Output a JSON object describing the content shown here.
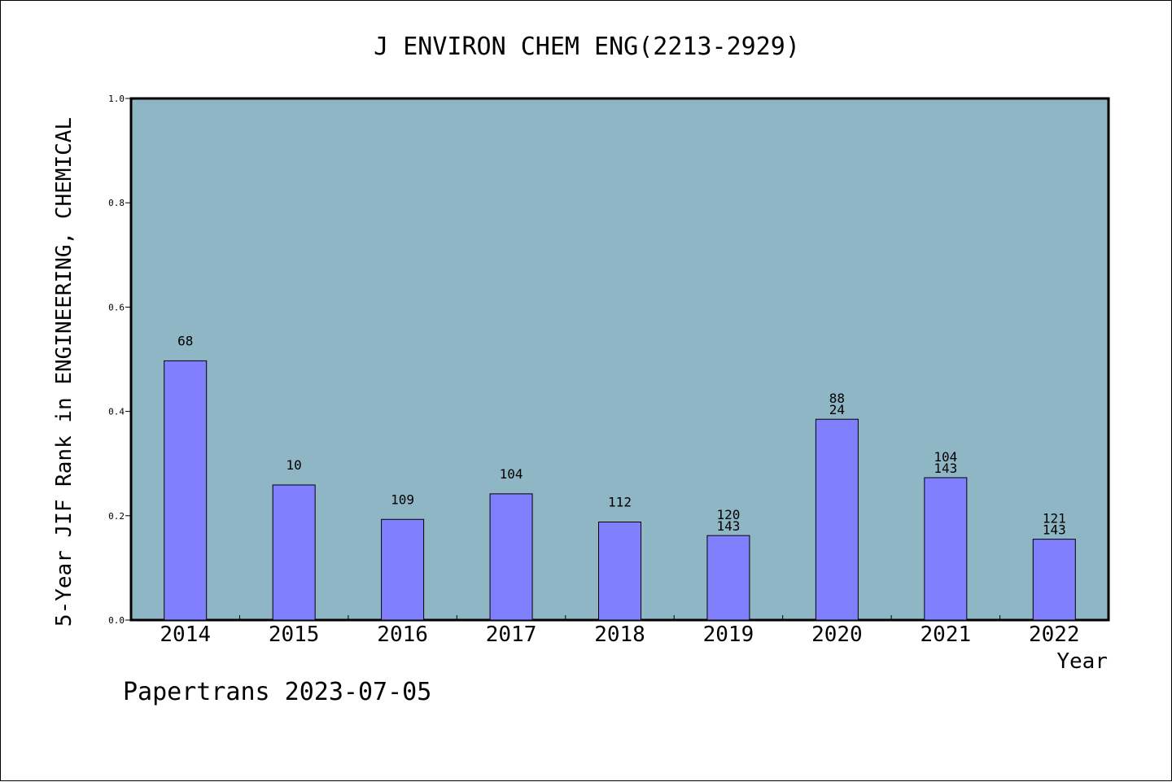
{
  "footer": "Papertrans 2023-07-05",
  "colors": {
    "plot_bg": "#8fb6c5",
    "bar": "#8080ff",
    "frame": "#000000"
  },
  "chart_data": {
    "type": "bar",
    "title": "J ENVIRON CHEM ENG(2213-2929)",
    "xlabel": "Year",
    "ylabel": "5-Year JIF Rank in ENGINEERING, CHEMICAL",
    "ylim": [
      0,
      1.0
    ],
    "yticks": [
      "0.0",
      "0.2",
      "0.4",
      "0.6",
      "0.8",
      "1.0"
    ],
    "grid": false,
    "categories": [
      "2014",
      "2015",
      "2016",
      "2017",
      "2018",
      "2019",
      "2020",
      "2021",
      "2022"
    ],
    "values": [
      0.497,
      0.259,
      0.193,
      0.242,
      0.188,
      0.162,
      0.385,
      0.273,
      0.155
    ],
    "bar_labels": [
      [
        "68"
      ],
      [
        "10"
      ],
      [
        "109"
      ],
      [
        "104"
      ],
      [
        "112"
      ],
      [
        "120",
        "143"
      ],
      [
        "88",
        "24"
      ],
      [
        "104",
        "143"
      ],
      [
        "121",
        "143"
      ]
    ]
  }
}
